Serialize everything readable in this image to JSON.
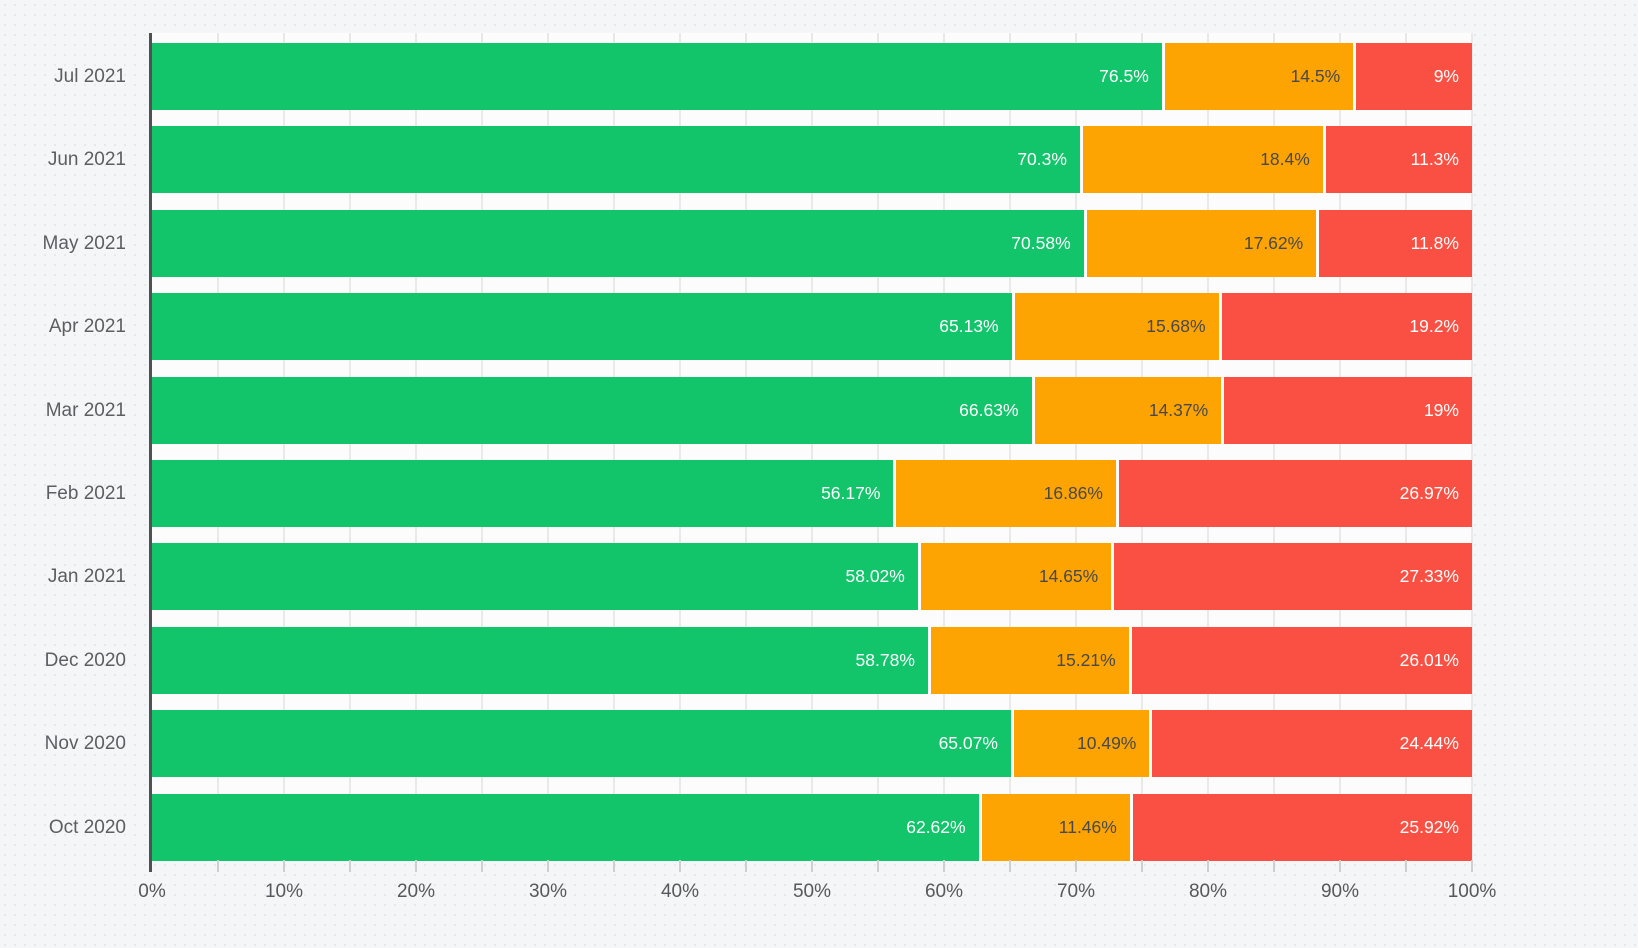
{
  "chart_data": {
    "type": "bar",
    "variant": "horizontal-stacked",
    "title": "",
    "xlabel": "",
    "ylabel": "",
    "xlim": [
      0,
      100
    ],
    "grid": true,
    "minor_gridline_step_pct": 5,
    "legend": "none",
    "categories": [
      "Jul 2021",
      "Jun 2021",
      "May 2021",
      "Apr 2021",
      "Mar 2021",
      "Feb 2021",
      "Jan 2021",
      "Dec 2020",
      "Nov 2020",
      "Oct 2020"
    ],
    "series": [
      {
        "name": "green",
        "color": "#12c46a",
        "label_color": "#ffffff",
        "values": [
          76.5,
          70.3,
          70.58,
          65.13,
          66.63,
          56.17,
          58.02,
          58.78,
          65.07,
          62.62
        ],
        "labels": [
          "76.5%",
          "70.3%",
          "70.58%",
          "65.13%",
          "66.63%",
          "56.17%",
          "58.02%",
          "58.78%",
          "65.07%",
          "62.62%"
        ]
      },
      {
        "name": "orange",
        "color": "#fda402",
        "label_color": "#47494c",
        "values": [
          14.5,
          18.4,
          17.62,
          15.68,
          14.37,
          16.86,
          14.65,
          15.21,
          10.49,
          11.46
        ],
        "labels": [
          "14.5%",
          "18.4%",
          "17.62%",
          "15.68%",
          "14.37%",
          "16.86%",
          "14.65%",
          "15.21%",
          "10.49%",
          "11.46%"
        ]
      },
      {
        "name": "red",
        "color": "#f95043",
        "label_color": "#ffffff",
        "values": [
          9,
          11.3,
          11.8,
          19.2,
          19,
          26.97,
          27.33,
          26.01,
          24.44,
          25.92
        ],
        "labels": [
          "9%",
          "11.3%",
          "11.8%",
          "19.2%",
          "19%",
          "26.97%",
          "27.33%",
          "26.01%",
          "24.44%",
          "25.92%"
        ]
      }
    ],
    "x_axis": {
      "tick_label_step_pct": 10,
      "tick_labels": [
        "0%",
        "10%",
        "20%",
        "30%",
        "40%",
        "50%",
        "60%",
        "70%",
        "80%",
        "90%",
        "100%"
      ]
    }
  }
}
